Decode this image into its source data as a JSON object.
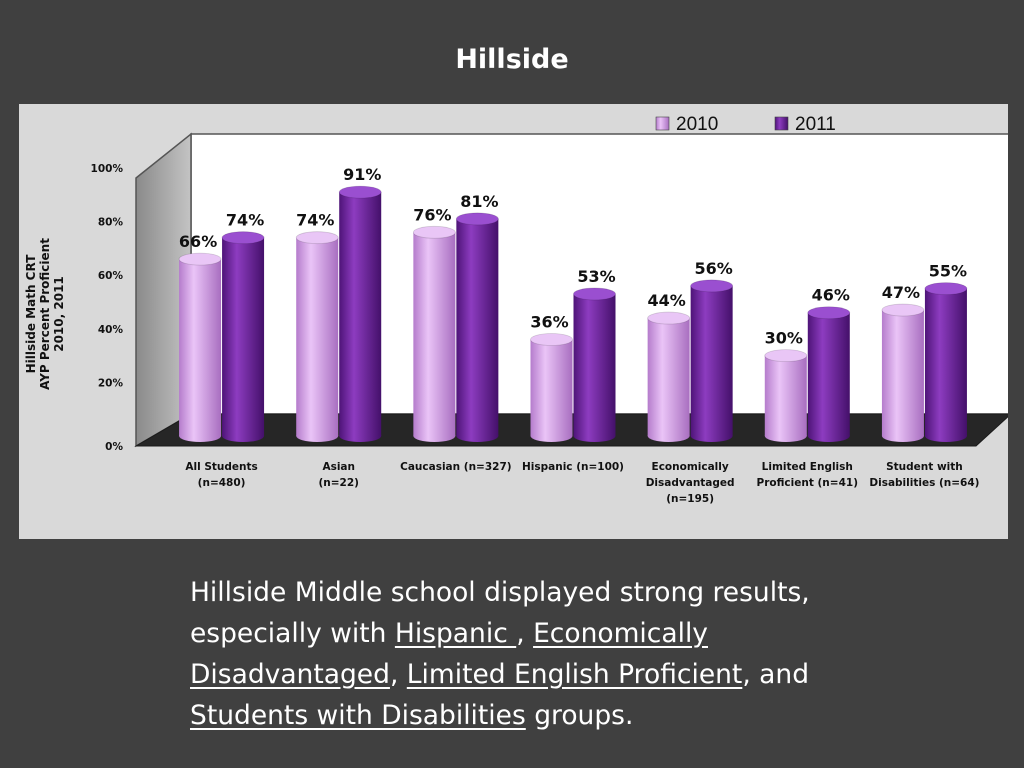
{
  "slide": {
    "title": "Hillside",
    "summary": {
      "p1": "Hillside Middle school displayed strong results, especially with ",
      "link1": "Hispanic ",
      "p2": ", ",
      "link2": "Economically Disadvantaged",
      "p3": ", ",
      "link3": "Limited English Proficient",
      "p4": ", and ",
      "link4": "Students with Disabilities",
      "p5": "  groups."
    }
  },
  "chart_data": {
    "type": "bar",
    "title": "",
    "ylabel_lines": [
      "Hillside Math  CRT",
      "AYP Percent Proficient",
      "2010, 2011"
    ],
    "ylim": [
      0,
      100
    ],
    "yticks": [
      0,
      20,
      40,
      60,
      80,
      100
    ],
    "ytick_labels": [
      "0%",
      "20%",
      "40%",
      "60%",
      "80%",
      "100%"
    ],
    "legend_position": "top-right",
    "categories": [
      [
        "All Students",
        "(n=480)"
      ],
      [
        "Asian",
        "(n=22)"
      ],
      [
        "Caucasian  (n=327)"
      ],
      [
        "Hispanic  (n=100)"
      ],
      [
        "Economically",
        "Disadvantaged",
        "(n=195)"
      ],
      [
        "Limited English",
        "Proficient (n=41)"
      ],
      [
        "Student with",
        "Disabilities  (n=64)"
      ]
    ],
    "series": [
      {
        "name": "2010",
        "color": "#d8a0ec",
        "values": [
          66,
          74,
          76,
          36,
          44,
          30,
          47
        ],
        "data_labels": [
          "66%",
          "74%",
          "76%",
          "36%",
          "44%",
          "30%",
          "47%"
        ]
      },
      {
        "name": "2011",
        "color": "#7a2aa8",
        "values": [
          74,
          91,
          81,
          53,
          56,
          46,
          55
        ],
        "data_labels": [
          "74%",
          "91%",
          "81%",
          "53%",
          "56%",
          "46%",
          "55%"
        ]
      }
    ]
  }
}
